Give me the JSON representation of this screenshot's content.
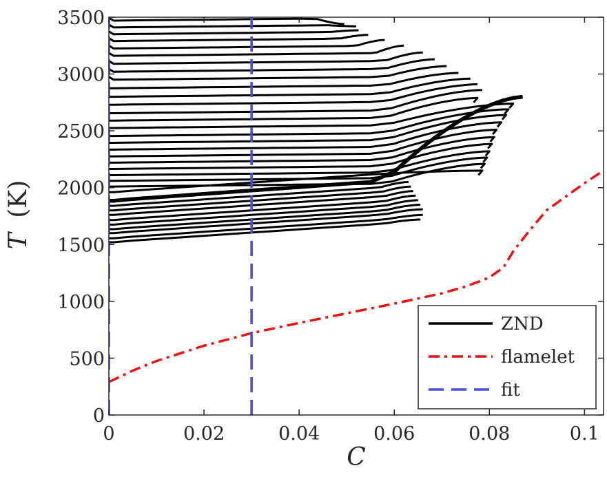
{
  "chart_data": {
    "type": "line",
    "xlabel": "C",
    "ylabel": "T",
    "ylabel_unit": "(K)",
    "xlim": [
      0,
      0.104
    ],
    "ylim": [
      0,
      3500
    ],
    "xticks": [
      0,
      0.02,
      0.04,
      0.06,
      0.08,
      0.1
    ],
    "xtick_labels": [
      "0",
      "0.02",
      "0.04",
      "0.06",
      "0.08",
      "0.1"
    ],
    "yticks": [
      0,
      500,
      1000,
      1500,
      2000,
      2500,
      3000,
      3500
    ],
    "ytick_labels": [
      "0",
      "500",
      "1000",
      "1500",
      "2000",
      "2500",
      "3000",
      "3500"
    ],
    "grid": false,
    "legend_position": "bottom-right",
    "legend": [
      "ZND",
      "flamelet",
      "fit"
    ],
    "colors": {
      "znd": "#000000",
      "flamelet": "#ee1111",
      "fit": "#4a4ae6",
      "axis": "#262626"
    },
    "series": [
      {
        "name": "ZND",
        "style": "solid",
        "note": "family of curves; highlighted curve is the thick line",
        "curves": [
          {
            "T0": 1520,
            "C_end": 0.0655,
            "T_end": 1720
          },
          {
            "T0": 1555,
            "C_end": 0.066,
            "T_end": 1760
          },
          {
            "T0": 1600,
            "C_end": 0.066,
            "T_end": 1810
          },
          {
            "T0": 1635,
            "C_end": 0.0655,
            "T_end": 1850
          },
          {
            "T0": 1675,
            "C_end": 0.065,
            "T_end": 1890
          },
          {
            "T0": 1715,
            "C_end": 0.0645,
            "T_end": 1930
          },
          {
            "T0": 1760,
            "C_end": 0.064,
            "T_end": 1970
          },
          {
            "T0": 1800,
            "C_end": 0.0635,
            "T_end": 2010
          },
          {
            "T0": 1840,
            "C_end": 0.063,
            "T_end": 2050
          },
          {
            "T0": 1885,
            "C_end": 0.087,
            "T_end": 2800,
            "bold": true
          },
          {
            "T0": 1960,
            "C_end": 0.0785,
            "T_end": 2150
          },
          {
            "T0": 2010,
            "C_end": 0.079,
            "T_end": 2210
          },
          {
            "T0": 2060,
            "C_end": 0.0795,
            "T_end": 2265
          },
          {
            "T0": 2110,
            "C_end": 0.08,
            "T_end": 2320
          },
          {
            "T0": 2165,
            "C_end": 0.0805,
            "T_end": 2385
          },
          {
            "T0": 2220,
            "C_end": 0.081,
            "T_end": 2445
          },
          {
            "T0": 2275,
            "C_end": 0.0815,
            "T_end": 2510
          },
          {
            "T0": 2335,
            "C_end": 0.0825,
            "T_end": 2575
          },
          {
            "T0": 2395,
            "C_end": 0.0835,
            "T_end": 2640
          },
          {
            "T0": 2455,
            "C_end": 0.084,
            "T_end": 2690
          },
          {
            "T0": 2525,
            "C_end": 0.085,
            "T_end": 2740
          },
          {
            "T0": 2590,
            "C_end": 0.0775,
            "T_end": 2790
          },
          {
            "T0": 2655,
            "C_end": 0.0785,
            "T_end": 2860
          },
          {
            "T0": 2730,
            "C_end": 0.0775,
            "T_end": 2910
          },
          {
            "T0": 2800,
            "C_end": 0.076,
            "T_end": 2960
          },
          {
            "T0": 2875,
            "C_end": 0.0735,
            "T_end": 3010
          },
          {
            "T0": 2950,
            "C_end": 0.071,
            "T_end": 3070
          },
          {
            "T0": 3020,
            "C_end": 0.0685,
            "T_end": 3130
          },
          {
            "T0": 3090,
            "C_end": 0.066,
            "T_end": 3190
          },
          {
            "T0": 3160,
            "C_end": 0.062,
            "T_end": 3250
          },
          {
            "T0": 3225,
            "C_end": 0.058,
            "T_end": 3300
          },
          {
            "T0": 3290,
            "C_end": 0.0545,
            "T_end": 3345
          },
          {
            "T0": 3350,
            "C_end": 0.0525,
            "T_end": 3385
          },
          {
            "T0": 3410,
            "C_end": 0.052,
            "T_end": 3420
          },
          {
            "T0": 3470,
            "C_end": 0.0495,
            "T_end": 3440
          }
        ]
      },
      {
        "name": "flamelet",
        "style": "dashdot",
        "x": [
          0,
          0.005,
          0.01,
          0.02,
          0.03,
          0.04,
          0.05,
          0.06,
          0.07,
          0.075,
          0.08,
          0.083,
          0.085,
          0.088,
          0.092,
          0.096,
          0.1,
          0.104
        ],
        "y": [
          290,
          390,
          475,
          610,
          720,
          810,
          895,
          980,
          1070,
          1130,
          1210,
          1300,
          1440,
          1600,
          1800,
          1920,
          2040,
          2150
        ]
      },
      {
        "name": "fit",
        "style": "dashed",
        "lines": [
          {
            "x": [
              0,
              0
            ],
            "y": [
              0,
              3500
            ]
          },
          {
            "x": [
              0.03,
              0.03
            ],
            "y": [
              0,
              3500
            ]
          }
        ]
      }
    ]
  }
}
